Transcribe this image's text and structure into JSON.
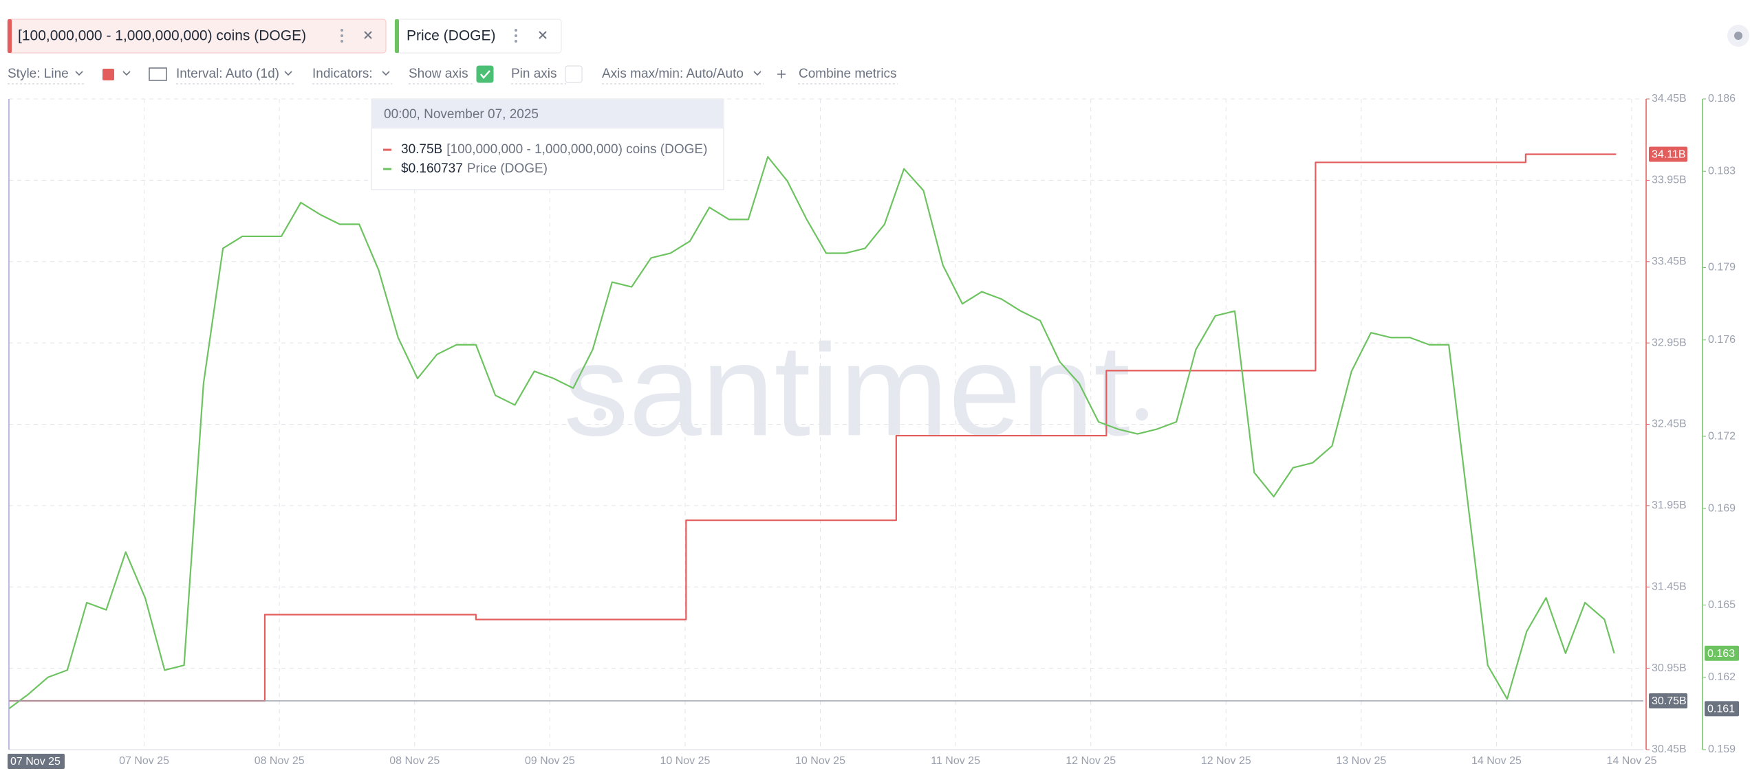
{
  "toolbar": {
    "style": "Style: Line",
    "interval": "Interval: Auto (1d)",
    "indicators": "Indicators:",
    "show_axis": "Show axis",
    "show_axis_checked": true,
    "pin_axis": "Pin axis",
    "pin_axis_checked": false,
    "axis_range": "Axis max/min: Auto/Auto",
    "combine": "Combine metrics"
  },
  "chart_data": {
    "type": "line",
    "watermark": "santiment",
    "grid": true,
    "xlim": [
      0,
      168
    ],
    "xticks": [
      {
        "value": 13.9,
        "label": "07 Nov 25"
      },
      {
        "value": 27.8,
        "label": "08 Nov 25"
      },
      {
        "value": 41.7,
        "label": "08 Nov 25"
      },
      {
        "value": 55.6,
        "label": "09 Nov 25"
      },
      {
        "value": 69.5,
        "label": "10 Nov 25"
      },
      {
        "value": 83.4,
        "label": "10 Nov 25"
      },
      {
        "value": 97.3,
        "label": "11 Nov 25"
      },
      {
        "value": 111.2,
        "label": "12 Nov 25"
      },
      {
        "value": 125.1,
        "label": "12 Nov 25"
      },
      {
        "value": 139,
        "label": "13 Nov 25"
      },
      {
        "value": 152.9,
        "label": "14 Nov 25"
      },
      {
        "value": 166.8,
        "label": "14 Nov 25"
      }
    ],
    "ylim": [
      30.45,
      34.45
    ],
    "yticks": [
      {
        "value": 30.45,
        "label": "30.45B"
      },
      {
        "value": 30.95,
        "label": "30.95B"
      },
      {
        "value": 31.45,
        "label": "31.45B"
      },
      {
        "value": 31.95,
        "label": "31.95B"
      },
      {
        "value": 32.45,
        "label": "32.45B"
      },
      {
        "value": 32.95,
        "label": "32.95B"
      },
      {
        "value": 33.45,
        "label": "33.45B"
      },
      {
        "value": 33.95,
        "label": "33.95B"
      },
      {
        "value": 34.45,
        "label": "34.45B"
      }
    ],
    "y2lim": [
      0.159,
      0.186
    ],
    "y2ticks": [
      0.159,
      0.162,
      0.165,
      0.169,
      0.172,
      0.176,
      0.179,
      0.183,
      0.186
    ],
    "series": [
      {
        "name": "[100,000,000 - 1,000,000,000) coins (DOGE)",
        "color": "#e35d5d",
        "shape": "step",
        "last_label": "34.11B",
        "x": [
          0,
          26.3,
          48,
          69.6,
          91.2,
          112.8,
          134.3,
          155.9,
          165.2
        ],
        "values": [
          30.75,
          31.28,
          31.25,
          31.86,
          32.38,
          32.78,
          34.06,
          34.11,
          34.11
        ]
      },
      {
        "name": "Price (DOGE)",
        "color": "#6cc35f",
        "axis": "y2",
        "shape": "line",
        "last_label": "0.163",
        "x": [
          0,
          2,
          4,
          6,
          8,
          10,
          12,
          14,
          16,
          18,
          20,
          22,
          24,
          26,
          28,
          30,
          32,
          34,
          36,
          38,
          40,
          42,
          44,
          46,
          48,
          50,
          52,
          54,
          56,
          58,
          60,
          62,
          64,
          66,
          68,
          70,
          72,
          74,
          76,
          78,
          80,
          82,
          84,
          86,
          88,
          90,
          92,
          94,
          96,
          98,
          100,
          102,
          104,
          106,
          108,
          110,
          112,
          114,
          116,
          118,
          120,
          122,
          124,
          126,
          128,
          130,
          132,
          134,
          136,
          138,
          140,
          142,
          144,
          146,
          148,
          150,
          152,
          154,
          156,
          158,
          160,
          162,
          164,
          165
        ],
        "values": [
          0.1607,
          0.1613,
          0.162,
          0.1623,
          0.1651,
          0.1648,
          0.1672,
          0.1653,
          0.1623,
          0.1625,
          0.1742,
          0.1798,
          0.1803,
          0.1803,
          0.1803,
          0.1817,
          0.1812,
          0.1808,
          0.1808,
          0.1789,
          0.1761,
          0.1744,
          0.1754,
          0.1758,
          0.1758,
          0.1737,
          0.1733,
          0.1747,
          0.1744,
          0.174,
          0.1756,
          0.1784,
          0.1782,
          0.1794,
          0.1796,
          0.1801,
          0.1815,
          0.181,
          0.181,
          0.1836,
          0.1826,
          0.181,
          0.1796,
          0.1796,
          0.1798,
          0.1808,
          0.1831,
          0.1822,
          0.1791,
          0.1775,
          0.178,
          0.1777,
          0.1772,
          0.1768,
          0.1751,
          0.1742,
          0.1726,
          0.1723,
          0.1721,
          0.1723,
          0.1726,
          0.1756,
          0.177,
          0.1772,
          0.1705,
          0.1695,
          0.1707,
          0.1709,
          0.1716,
          0.1747,
          0.1763,
          0.1761,
          0.1761,
          0.1758,
          0.1758,
          0.1691,
          0.1625,
          0.1611,
          0.1639,
          0.1653,
          0.163,
          0.1651,
          0.1644,
          0.163
        ]
      }
    ],
    "crosshair": {
      "x": 0,
      "x_label": "07 Nov 25",
      "y_label": "30.75B",
      "y2_label": "0.161"
    },
    "tooltip": {
      "title": "00:00, November 07, 2025",
      "values": [
        "30.75B",
        "$0.160737"
      ]
    }
  }
}
